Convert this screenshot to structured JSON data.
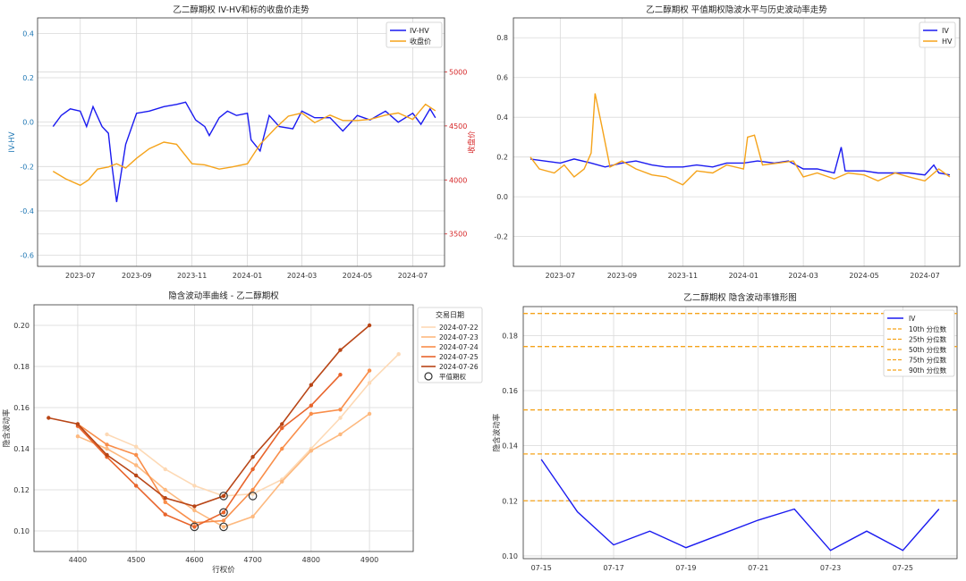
{
  "chart_data": [
    {
      "type": "line",
      "title": "乙二醇期权 IV-HV和标的收盘价走势",
      "ylabel": "IV-HV",
      "ylabel_right": "收盘价",
      "x_ticks": [
        "2023-07",
        "2023-09",
        "2023-11",
        "2024-01",
        "2024-03",
        "2024-05",
        "2024-07"
      ],
      "y_ticks": [
        "0.4",
        "0.2",
        "0.0",
        "-0.2",
        "-0.4",
        "-0.6"
      ],
      "y_right_ticks": [
        "5000",
        "4500",
        "4000",
        "3500"
      ],
      "ylim": [
        -0.65,
        0.47
      ],
      "ylim_right": [
        3200,
        5500
      ],
      "xlim": [
        "2023-05-15",
        "2024-08-05"
      ],
      "legend_position": "top-right",
      "colors": {
        "left_axis": "#1f77b4",
        "right_axis": "#d62728"
      },
      "series": [
        {
          "name": "IV-HV",
          "color": "#1a1af0",
          "axis": "left",
          "x": [
            "2023-06-01",
            "2023-06-10",
            "2023-06-20",
            "2023-07-01",
            "2023-07-08",
            "2023-07-15",
            "2023-07-25",
            "2023-08-01",
            "2023-08-05",
            "2023-08-10",
            "2023-08-20",
            "2023-09-01",
            "2023-09-15",
            "2023-10-01",
            "2023-10-15",
            "2023-10-25",
            "2023-11-05",
            "2023-11-15",
            "2023-11-20",
            "2023-12-01",
            "2023-12-10",
            "2023-12-20",
            "2024-01-01",
            "2024-01-05",
            "2024-01-15",
            "2024-01-25",
            "2024-02-05",
            "2024-02-20",
            "2024-03-01",
            "2024-03-15",
            "2024-04-01",
            "2024-04-15",
            "2024-05-01",
            "2024-05-15",
            "2024-06-01",
            "2024-06-15",
            "2024-07-01",
            "2024-07-10",
            "2024-07-20",
            "2024-07-26"
          ],
          "values": [
            -0.02,
            0.03,
            0.06,
            0.05,
            -0.02,
            0.07,
            -0.02,
            -0.05,
            -0.2,
            -0.36,
            -0.1,
            0.04,
            0.05,
            0.07,
            0.08,
            0.09,
            0.01,
            -0.02,
            -0.06,
            0.02,
            0.05,
            0.03,
            0.04,
            -0.08,
            -0.13,
            0.03,
            -0.02,
            -0.03,
            0.05,
            0.02,
            0.02,
            -0.04,
            0.03,
            0.01,
            0.05,
            0.0,
            0.04,
            -0.01,
            0.06,
            0.02
          ]
        },
        {
          "name": "收盘价",
          "color": "#f5a31a",
          "axis": "right",
          "x": [
            "2023-06-01",
            "2023-06-15",
            "2023-07-01",
            "2023-07-10",
            "2023-07-20",
            "2023-08-01",
            "2023-08-10",
            "2023-08-20",
            "2023-09-01",
            "2023-09-15",
            "2023-10-01",
            "2023-10-15",
            "2023-11-01",
            "2023-11-15",
            "2023-12-01",
            "2023-12-15",
            "2024-01-01",
            "2024-01-15",
            "2024-02-01",
            "2024-02-15",
            "2024-03-01",
            "2024-03-15",
            "2024-04-01",
            "2024-04-15",
            "2024-05-01",
            "2024-05-15",
            "2024-06-01",
            "2024-06-15",
            "2024-07-01",
            "2024-07-15",
            "2024-07-26"
          ],
          "values": [
            4080,
            4010,
            3950,
            4000,
            4100,
            4120,
            4150,
            4110,
            4200,
            4290,
            4350,
            4330,
            4150,
            4140,
            4100,
            4120,
            4150,
            4330,
            4480,
            4590,
            4620,
            4530,
            4600,
            4550,
            4550,
            4560,
            4600,
            4620,
            4560,
            4700,
            4640
          ]
        }
      ]
    },
    {
      "type": "line",
      "title": "乙二醇期权 平值期权隐波水平与历史波动率走势",
      "x_ticks": [
        "2023-07",
        "2023-09",
        "2023-11",
        "2024-01",
        "2024-03",
        "2024-05",
        "2024-07"
      ],
      "y_ticks": [
        "0.8",
        "0.6",
        "0.4",
        "0.2",
        "0.0",
        "-0.2"
      ],
      "ylim": [
        -0.35,
        0.9
      ],
      "xlim": [
        "2023-05-15",
        "2024-08-05"
      ],
      "legend_position": "top-right",
      "series": [
        {
          "name": "IV",
          "color": "#1a1af0",
          "x": [
            "2023-06-01",
            "2023-06-15",
            "2023-07-01",
            "2023-07-15",
            "2023-08-01",
            "2023-08-15",
            "2023-09-01",
            "2023-09-15",
            "2023-10-01",
            "2023-10-15",
            "2023-11-01",
            "2023-11-15",
            "2023-12-01",
            "2023-12-15",
            "2024-01-01",
            "2024-01-15",
            "2024-02-01",
            "2024-02-15",
            "2024-03-01",
            "2024-03-15",
            "2024-04-01",
            "2024-04-08",
            "2024-04-12",
            "2024-05-01",
            "2024-05-15",
            "2024-06-01",
            "2024-06-15",
            "2024-07-01",
            "2024-07-10",
            "2024-07-15",
            "2024-07-26"
          ],
          "values": [
            0.19,
            0.18,
            0.17,
            0.19,
            0.17,
            0.15,
            0.17,
            0.18,
            0.16,
            0.15,
            0.15,
            0.16,
            0.15,
            0.17,
            0.17,
            0.18,
            0.17,
            0.18,
            0.14,
            0.14,
            0.12,
            0.25,
            0.13,
            0.13,
            0.12,
            0.12,
            0.12,
            0.11,
            0.16,
            0.12,
            0.11
          ]
        },
        {
          "name": "HV",
          "color": "#f5a31a",
          "x": [
            "2023-06-01",
            "2023-06-10",
            "2023-06-25",
            "2023-07-05",
            "2023-07-15",
            "2023-07-25",
            "2023-08-01",
            "2023-08-05",
            "2023-08-12",
            "2023-08-20",
            "2023-09-01",
            "2023-09-15",
            "2023-10-01",
            "2023-10-15",
            "2023-11-01",
            "2023-11-15",
            "2023-12-01",
            "2023-12-15",
            "2024-01-01",
            "2024-01-05",
            "2024-01-12",
            "2024-01-20",
            "2024-02-05",
            "2024-02-20",
            "2024-03-01",
            "2024-03-15",
            "2024-04-01",
            "2024-04-15",
            "2024-05-01",
            "2024-05-15",
            "2024-06-01",
            "2024-06-15",
            "2024-07-01",
            "2024-07-15",
            "2024-07-26"
          ],
          "values": [
            0.2,
            0.14,
            0.12,
            0.16,
            0.1,
            0.14,
            0.22,
            0.52,
            0.35,
            0.15,
            0.18,
            0.14,
            0.11,
            0.1,
            0.06,
            0.13,
            0.12,
            0.16,
            0.14,
            0.3,
            0.31,
            0.16,
            0.17,
            0.18,
            0.1,
            0.12,
            0.09,
            0.12,
            0.11,
            0.08,
            0.12,
            0.1,
            0.08,
            0.14,
            0.1
          ]
        }
      ]
    },
    {
      "type": "line",
      "title": "隐含波动率曲线 - 乙二醇期权",
      "xlabel": "行权价",
      "ylabel": "隐含波动率",
      "x_ticks": [
        "4400",
        "4500",
        "4600",
        "4700",
        "4800",
        "4900"
      ],
      "y_ticks": [
        "0.20",
        "0.18",
        "0.16",
        "0.14",
        "0.12",
        "0.10"
      ],
      "xlim": [
        4325,
        4975
      ],
      "ylim": [
        0.09,
        0.21
      ],
      "legend_title": "交易日期",
      "legend_position": "outside-right",
      "atm_label": "平值期权",
      "series": [
        {
          "name": "2024-07-22",
          "color": "#fdd9b5",
          "x": [
            4450,
            4500,
            4550,
            4600,
            4650,
            4700,
            4750,
            4800,
            4850,
            4900,
            4950
          ],
          "values": [
            0.147,
            0.141,
            0.13,
            0.122,
            0.117,
            0.118,
            0.125,
            0.14,
            0.155,
            0.172,
            0.186
          ]
        },
        {
          "name": "2024-07-23",
          "color": "#fdb97f",
          "x": [
            4400,
            4450,
            4500,
            4550,
            4600,
            4650,
            4700,
            4750,
            4800,
            4850,
            4900
          ],
          "values": [
            0.146,
            0.14,
            0.132,
            0.12,
            0.11,
            0.102,
            0.107,
            0.124,
            0.139,
            0.147,
            0.157
          ]
        },
        {
          "name": "2024-07-24",
          "color": "#f98e4a",
          "x": [
            4400,
            4450,
            4500,
            4550,
            4600,
            4650,
            4700,
            4750,
            4800,
            4850,
            4900
          ],
          "values": [
            0.152,
            0.142,
            0.137,
            0.114,
            0.104,
            0.105,
            0.12,
            0.14,
            0.157,
            0.159,
            0.178
          ]
        },
        {
          "name": "2024-07-25",
          "color": "#e8642b",
          "x": [
            4400,
            4450,
            4500,
            4550,
            4600,
            4650,
            4700,
            4750,
            4800,
            4850
          ],
          "values": [
            0.151,
            0.136,
            0.122,
            0.108,
            0.102,
            0.109,
            0.13,
            0.15,
            0.161,
            0.176
          ]
        },
        {
          "name": "2024-07-26",
          "color": "#b84516",
          "x": [
            4350,
            4400,
            4450,
            4500,
            4550,
            4600,
            4650,
            4700,
            4750,
            4800,
            4850,
            4900
          ],
          "values": [
            0.155,
            0.152,
            0.137,
            0.127,
            0.116,
            0.112,
            0.117,
            0.136,
            0.152,
            0.171,
            0.188,
            0.2
          ]
        }
      ],
      "atm_points": [
        {
          "x": 4600,
          "y": 0.102
        },
        {
          "x": 4650,
          "y": 0.102
        },
        {
          "x": 4650,
          "y": 0.109
        },
        {
          "x": 4650,
          "y": 0.117
        },
        {
          "x": 4700,
          "y": 0.117
        }
      ]
    },
    {
      "type": "line",
      "title": "乙二醇期权 隐含波动率锥形图",
      "ylabel": "隐含波动率",
      "x_ticks": [
        "07-15",
        "07-17",
        "07-19",
        "07-21",
        "07-23",
        "07-25"
      ],
      "y_ticks": [
        "0.18",
        "0.16",
        "0.14",
        "0.12",
        "0.10"
      ],
      "ylim": [
        0.099,
        0.1905
      ],
      "xlim": [
        -0.5,
        11.5
      ],
      "legend_position": "top-right",
      "series": [
        {
          "name": "IV",
          "color": "#1a1af0",
          "x": [
            0,
            1,
            2,
            3,
            4,
            5,
            6,
            7,
            8,
            9,
            10,
            11
          ],
          "values": [
            0.135,
            0.116,
            0.104,
            0.109,
            0.103,
            0.108,
            0.113,
            0.117,
            0.102,
            0.109,
            0.102,
            0.117
          ]
        }
      ],
      "percentiles": [
        {
          "name": "10th 分位数",
          "value": 0.12
        },
        {
          "name": "25th 分位数",
          "value": 0.137
        },
        {
          "name": "50th 分位数",
          "value": 0.153
        },
        {
          "name": "75th 分位数",
          "value": 0.176
        },
        {
          "name": "90th 分位数",
          "value": 0.188
        }
      ],
      "percentile_color": "#f5a31a"
    }
  ]
}
